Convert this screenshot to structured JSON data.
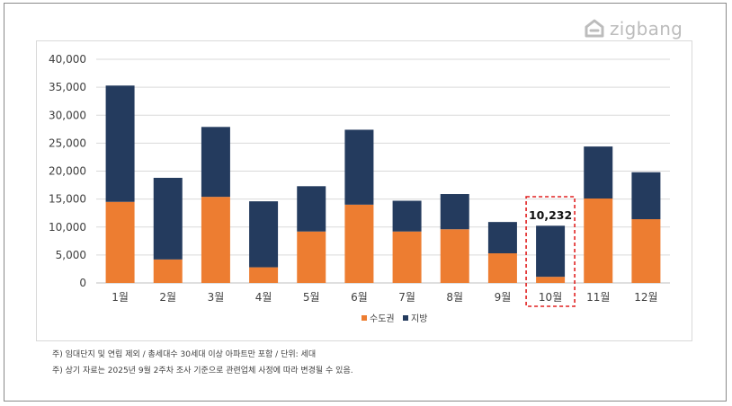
{
  "brand": {
    "logo_text": "zigbang",
    "logo_icon": "zigbang-house-icon"
  },
  "colors": {
    "metro": "#ED7D31",
    "regional": "#243B5E",
    "grid": "#d9d9d9",
    "highlight": "#e02020"
  },
  "chart_data": {
    "type": "bar",
    "stacked": true,
    "categories": [
      "1월",
      "2월",
      "3월",
      "4월",
      "5월",
      "6월",
      "7월",
      "8월",
      "9월",
      "10월",
      "11월",
      "12월"
    ],
    "series": [
      {
        "name": "수도권",
        "values": [
          14500,
          4200,
          15400,
          2800,
          9200,
          14000,
          9200,
          9600,
          5300,
          1100,
          15100,
          11400
        ]
      },
      {
        "name": "지방",
        "values": [
          20800,
          14600,
          12500,
          11800,
          8100,
          13400,
          5500,
          6300,
          5600,
          9132,
          9300,
          8400
        ]
      }
    ],
    "yticks": [
      "0",
      "5,000",
      "10,000",
      "15,000",
      "20,000",
      "25,000",
      "30,000",
      "35,000",
      "40,000"
    ],
    "ylim": [
      0,
      40000
    ],
    "grid": true,
    "legend_position": "bottom",
    "annotation": {
      "category": "10월",
      "label": "10,232"
    }
  },
  "notes": [
    "주) 임대단지 및 연립 제외 / 총세대수 30세대 이상 아파트만 포함 / 단위: 세대",
    "주) 상기 자료는 2025년 9월 2주차 조사 기준으로 관련업체 사정에 따라 변경될 수 있음."
  ]
}
